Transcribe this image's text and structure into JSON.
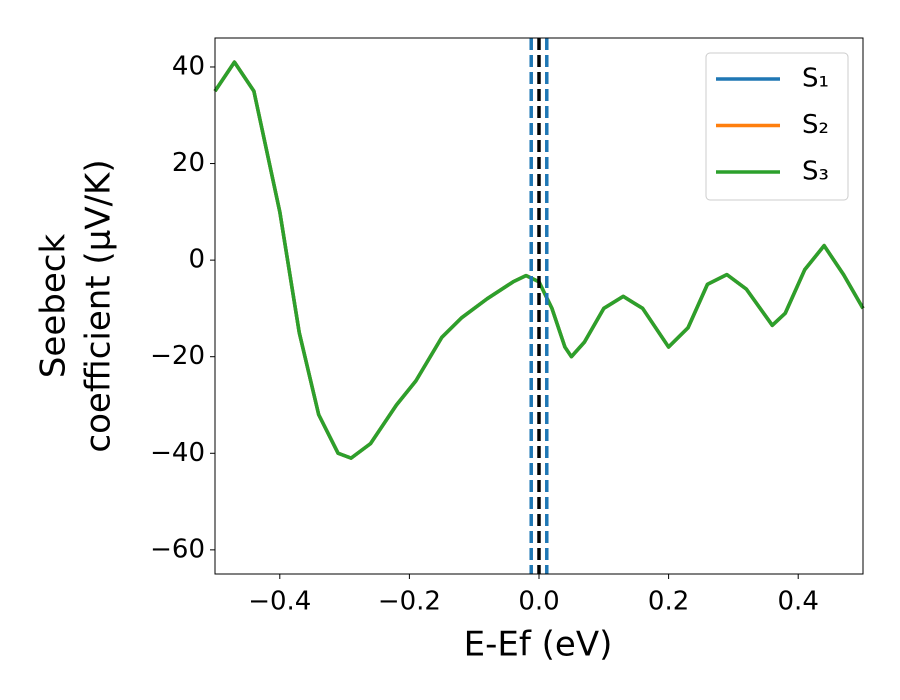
{
  "chart_data": {
    "type": "line",
    "xlabel": "E-Ef (eV)",
    "ylabel": [
      "Seebeck",
      "coefficient  (μV/K)"
    ],
    "x": [
      -0.5,
      -0.47,
      -0.44,
      -0.4,
      -0.37,
      -0.34,
      -0.31,
      -0.29,
      -0.26,
      -0.22,
      -0.19,
      -0.15,
      -0.12,
      -0.08,
      -0.04,
      -0.02,
      0.0,
      0.02,
      0.04,
      0.05,
      0.07,
      0.1,
      0.13,
      0.16,
      0.2,
      0.23,
      0.26,
      0.29,
      0.32,
      0.36,
      0.38,
      0.41,
      0.44,
      0.47,
      0.5
    ],
    "series": [
      {
        "name": "S₁",
        "color": "#1f77b4",
        "values": [
          35,
          41,
          35,
          10,
          -15,
          -32,
          -40,
          -41,
          -38,
          -30,
          -25,
          -16,
          -12,
          -8,
          -4.5,
          -3.2,
          -4.5,
          -10,
          -18,
          -20,
          -17,
          -10,
          -7.5,
          -10,
          -18,
          -14,
          -5,
          -3,
          -6,
          -13.5,
          -11,
          -2,
          3,
          -3,
          -10
        ]
      },
      {
        "name": "S₂",
        "color": "#ff7f0e",
        "values": [
          35,
          41,
          35,
          10,
          -15,
          -32,
          -40,
          -41,
          -38,
          -30,
          -25,
          -16,
          -12,
          -8,
          -4.5,
          -3.2,
          -4.5,
          -10,
          -18,
          -20,
          -17,
          -10,
          -7.5,
          -10,
          -18,
          -14,
          -5,
          -3,
          -6,
          -13.5,
          -11,
          -2,
          3,
          -3,
          -10
        ]
      },
      {
        "name": "S₃",
        "color": "#2ca02c",
        "values": [
          35,
          41,
          35,
          10,
          -15,
          -32,
          -40,
          -41,
          -38,
          -30,
          -25,
          -16,
          -12,
          -8,
          -4.5,
          -3.2,
          -4.5,
          -10,
          -18,
          -20,
          -17,
          -10,
          -7.5,
          -10,
          -18,
          -14,
          -5,
          -3,
          -6,
          -13.5,
          -11,
          -2,
          3,
          -3,
          -10
        ]
      }
    ],
    "vlines": [
      {
        "x": -0.012,
        "color": "#1f77b4"
      },
      {
        "x": 0,
        "color": "#000000"
      },
      {
        "x": 0.012,
        "color": "#1f77b4"
      }
    ],
    "xlim": [
      -0.5,
      0.5
    ],
    "ylim": [
      -65,
      46
    ],
    "xticks": [
      {
        "value": -0.4,
        "label": "−0.4"
      },
      {
        "value": -0.2,
        "label": "−0.2"
      },
      {
        "value": 0,
        "label": "0.0"
      },
      0.2,
      0.4
    ],
    "yticks": [
      {
        "value": -60,
        "label": "−60"
      },
      {
        "value": -40,
        "label": "−40"
      },
      {
        "value": -20,
        "label": "−20"
      },
      0,
      20,
      40
    ],
    "legend": "upper right"
  }
}
